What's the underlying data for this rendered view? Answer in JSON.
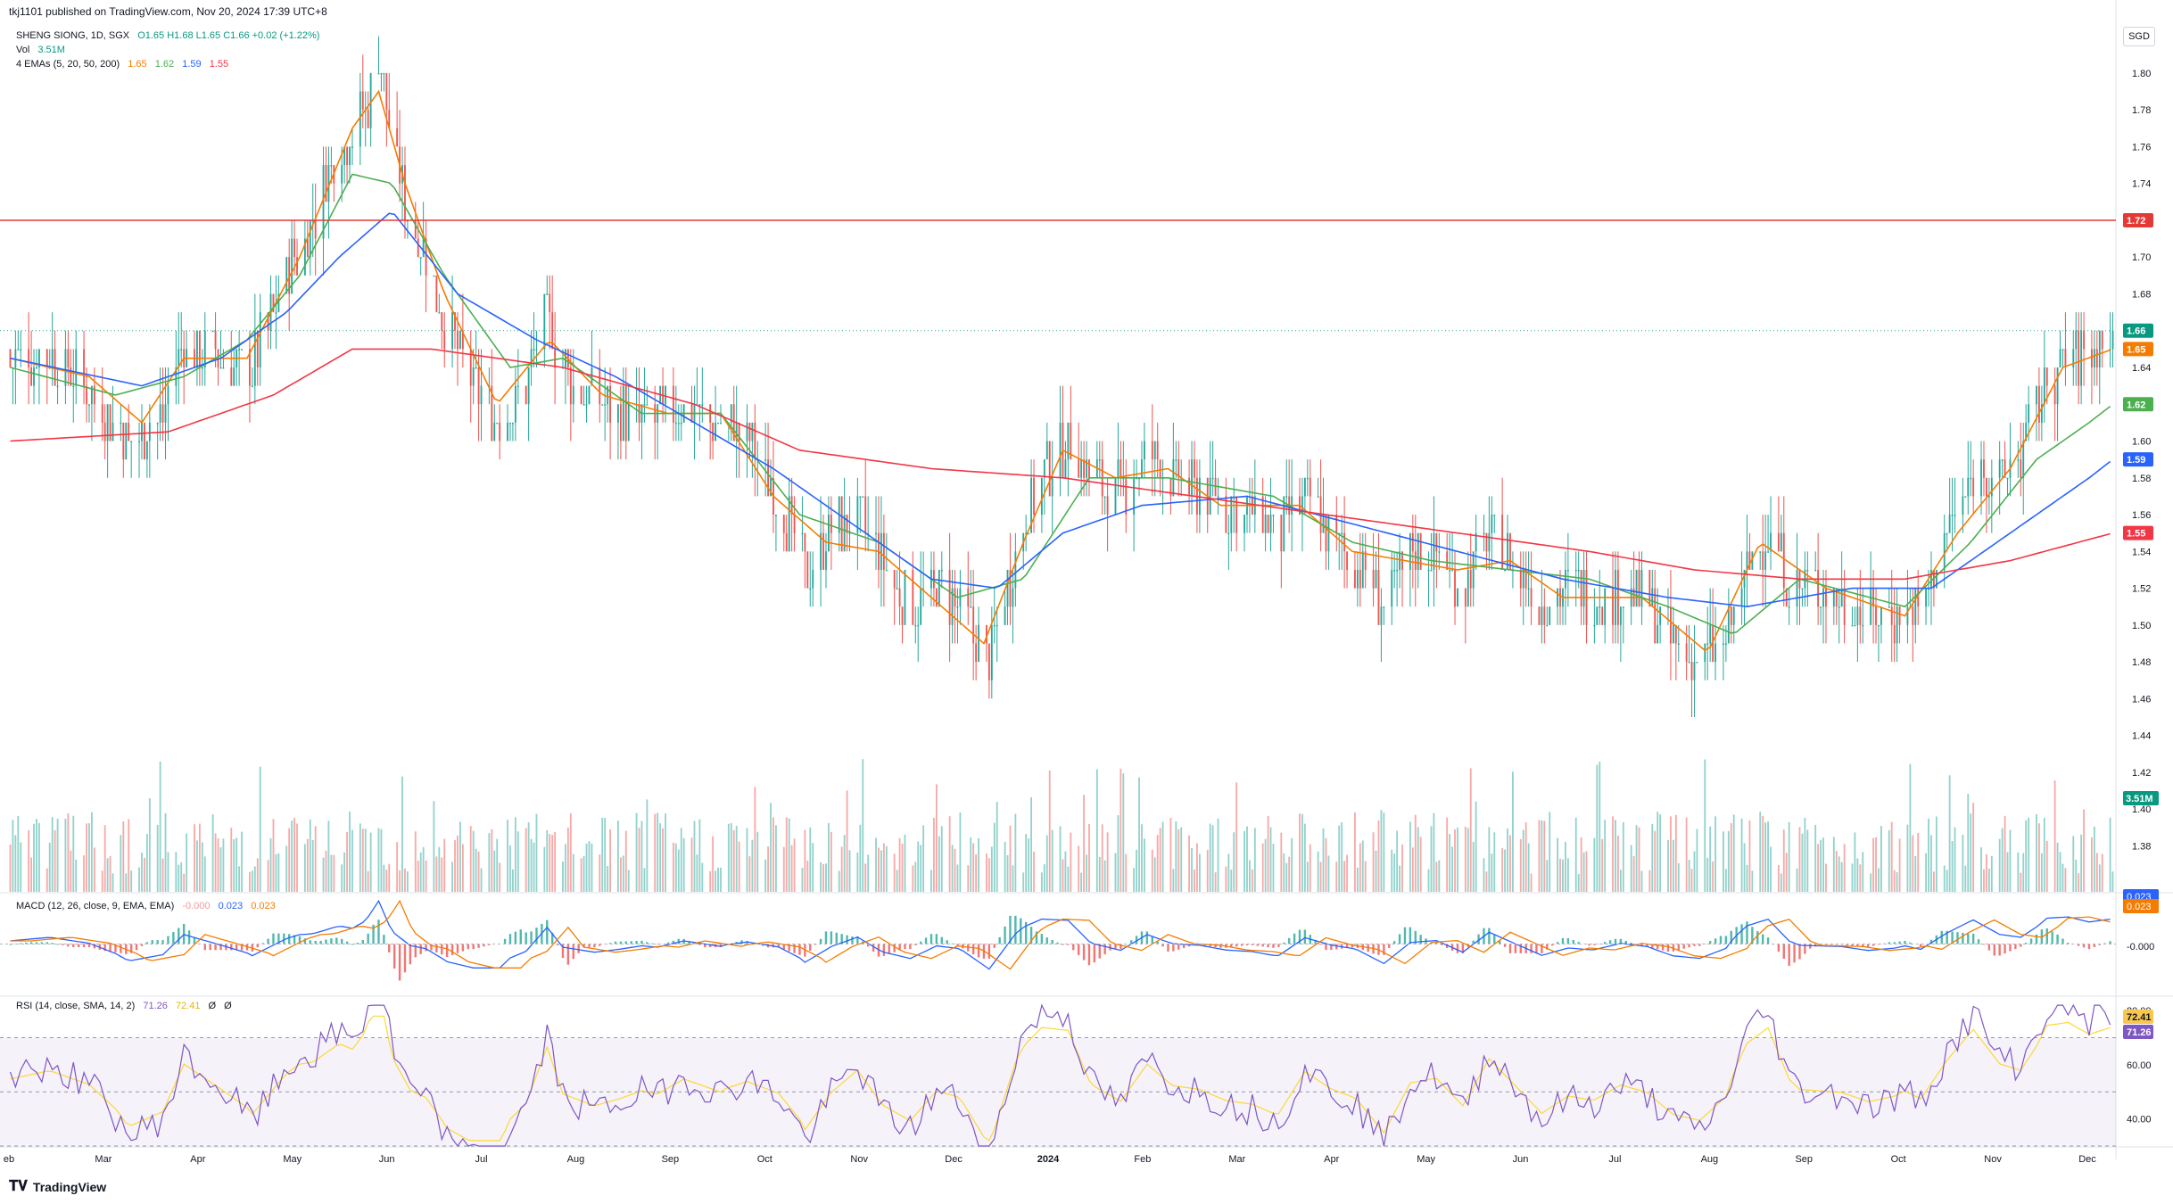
{
  "header": {
    "publisher_line": "tkj1101 published on TradingView.com, Nov 20, 2024 17:39 UTC+8"
  },
  "legend": {
    "symbol": "SHENG SIONG, 1D, SGX",
    "ohlc": "O1.65  H1.68  L1.65  C1.66  +0.02 (+1.22%)",
    "vol_label": "Vol",
    "vol_value": "3.51M",
    "ema_label": "4 EMAs (5, 20, 50, 200)",
    "ema_values": [
      "1.65",
      "1.62",
      "1.59",
      "1.55"
    ],
    "macd_label": "MACD (12, 26, close, 9, EMA, EMA)",
    "macd_values": [
      "-0.000",
      "0.023",
      "0.023"
    ],
    "rsi_label": "RSI (14, close, SMA, 14, 2)",
    "rsi_values": [
      "71.26",
      "72.41",
      "Ø",
      "Ø"
    ]
  },
  "currency": "SGD",
  "footer": {
    "brand": "TradingView"
  },
  "colors": {
    "up": "#26a69a",
    "down": "#ef5350",
    "ema5": "#f57c00",
    "ema20": "#4caf50",
    "ema50": "#2962ff",
    "ema200": "#f23645",
    "hline": "#e53935",
    "rsi": "#7e57c2",
    "rsi_ma": "#fdd835"
  },
  "chart_data": {
    "type": "candlestick",
    "price_axis_ticks": [
      "1.80",
      "1.78",
      "1.76",
      "1.74",
      "1.72",
      "1.70",
      "1.68",
      "1.66",
      "1.64",
      "1.62",
      "1.60",
      "1.58",
      "1.56",
      "1.54",
      "1.52",
      "1.50",
      "1.48",
      "1.46",
      "1.44",
      "1.42",
      "1.40",
      "1.38"
    ],
    "ylim": [
      1.355,
      1.83
    ],
    "price_labels": [
      {
        "value": 1.72,
        "text": "1.72",
        "color": "#e53935"
      },
      {
        "value": 1.66,
        "text": "1.66",
        "color": "#089981"
      },
      {
        "value": 1.65,
        "text": "1.65",
        "color": "#f57c00"
      },
      {
        "value": 1.62,
        "text": "1.62",
        "color": "#4caf50"
      },
      {
        "value": 1.59,
        "text": "1.59",
        "color": "#2962ff"
      },
      {
        "value": 1.55,
        "text": "1.55",
        "color": "#f23645"
      }
    ],
    "volume_label": "3.51M",
    "horizontal_line": 1.72,
    "last_close": 1.66,
    "time_axis": [
      "eb",
      "Mar",
      "Apr",
      "May",
      "Jun",
      "Jul",
      "Aug",
      "Sep",
      "Oct",
      "Nov",
      "Dec",
      "2024",
      "Feb",
      "Mar",
      "Apr",
      "May",
      "Jun",
      "Jul",
      "Aug",
      "Sep",
      "Oct",
      "Nov",
      "Dec"
    ],
    "series_path": [
      [
        0,
        1.645
      ],
      [
        15,
        1.645
      ],
      [
        30,
        1.63
      ],
      [
        45,
        1.6
      ],
      [
        58,
        1.615
      ],
      [
        66,
        1.65
      ],
      [
        80,
        1.645
      ],
      [
        92,
        1.64
      ],
      [
        105,
        1.69
      ],
      [
        115,
        1.72
      ],
      [
        125,
        1.76
      ],
      [
        135,
        1.78
      ],
      [
        140,
        1.81
      ],
      [
        145,
        1.76
      ],
      [
        152,
        1.72
      ],
      [
        158,
        1.7
      ],
      [
        166,
        1.66
      ],
      [
        176,
        1.63
      ],
      [
        186,
        1.61
      ],
      [
        196,
        1.63
      ],
      [
        204,
        1.67
      ],
      [
        210,
        1.64
      ],
      [
        222,
        1.62
      ],
      [
        232,
        1.615
      ],
      [
        246,
        1.61
      ],
      [
        256,
        1.62
      ],
      [
        264,
        1.615
      ],
      [
        272,
        1.61
      ],
      [
        280,
        1.6
      ],
      [
        292,
        1.57
      ],
      [
        302,
        1.53
      ],
      [
        312,
        1.55
      ],
      [
        322,
        1.56
      ],
      [
        332,
        1.53
      ],
      [
        342,
        1.51
      ],
      [
        352,
        1.52
      ],
      [
        362,
        1.505
      ],
      [
        372,
        1.48
      ],
      [
        382,
        1.54
      ],
      [
        392,
        1.58
      ],
      [
        402,
        1.6
      ],
      [
        412,
        1.58
      ],
      [
        422,
        1.57
      ],
      [
        432,
        1.595
      ],
      [
        442,
        1.58
      ],
      [
        452,
        1.575
      ],
      [
        462,
        1.565
      ],
      [
        472,
        1.56
      ],
      [
        482,
        1.55
      ],
      [
        492,
        1.57
      ],
      [
        502,
        1.55
      ],
      [
        512,
        1.535
      ],
      [
        522,
        1.51
      ],
      [
        532,
        1.54
      ],
      [
        542,
        1.54
      ],
      [
        552,
        1.52
      ],
      [
        562,
        1.55
      ],
      [
        572,
        1.53
      ],
      [
        582,
        1.51
      ],
      [
        592,
        1.52
      ],
      [
        602,
        1.515
      ],
      [
        612,
        1.52
      ],
      [
        622,
        1.51
      ],
      [
        632,
        1.49
      ],
      [
        642,
        1.48
      ],
      [
        652,
        1.49
      ],
      [
        660,
        1.53
      ],
      [
        668,
        1.55
      ],
      [
        676,
        1.525
      ],
      [
        686,
        1.52
      ],
      [
        696,
        1.515
      ],
      [
        706,
        1.505
      ],
      [
        716,
        1.505
      ],
      [
        726,
        1.51
      ],
      [
        736,
        1.55
      ],
      [
        746,
        1.585
      ],
      [
        756,
        1.58
      ],
      [
        764,
        1.59
      ],
      [
        774,
        1.635
      ],
      [
        782,
        1.645
      ],
      [
        790,
        1.645
      ],
      [
        799,
        1.66
      ]
    ],
    "ema_paths": {
      "ema5": [
        [
          0,
          1.645
        ],
        [
          30,
          1.635
        ],
        [
          50,
          1.61
        ],
        [
          66,
          1.645
        ],
        [
          90,
          1.645
        ],
        [
          110,
          1.7
        ],
        [
          130,
          1.77
        ],
        [
          140,
          1.79
        ],
        [
          150,
          1.74
        ],
        [
          165,
          1.68
        ],
        [
          185,
          1.62
        ],
        [
          205,
          1.655
        ],
        [
          225,
          1.625
        ],
        [
          250,
          1.615
        ],
        [
          270,
          1.615
        ],
        [
          290,
          1.57
        ],
        [
          310,
          1.545
        ],
        [
          330,
          1.54
        ],
        [
          350,
          1.515
        ],
        [
          370,
          1.49
        ],
        [
          385,
          1.545
        ],
        [
          400,
          1.595
        ],
        [
          420,
          1.58
        ],
        [
          440,
          1.585
        ],
        [
          460,
          1.565
        ],
        [
          490,
          1.565
        ],
        [
          510,
          1.54
        ],
        [
          530,
          1.535
        ],
        [
          550,
          1.53
        ],
        [
          570,
          1.535
        ],
        [
          590,
          1.515
        ],
        [
          620,
          1.515
        ],
        [
          645,
          1.485
        ],
        [
          665,
          1.545
        ],
        [
          690,
          1.52
        ],
        [
          720,
          1.505
        ],
        [
          740,
          1.55
        ],
        [
          760,
          1.585
        ],
        [
          780,
          1.64
        ],
        [
          799,
          1.65
        ]
      ],
      "ema20": [
        [
          0,
          1.64
        ],
        [
          40,
          1.625
        ],
        [
          66,
          1.635
        ],
        [
          90,
          1.655
        ],
        [
          110,
          1.69
        ],
        [
          130,
          1.745
        ],
        [
          145,
          1.74
        ],
        [
          165,
          1.69
        ],
        [
          190,
          1.64
        ],
        [
          210,
          1.645
        ],
        [
          240,
          1.615
        ],
        [
          270,
          1.615
        ],
        [
          300,
          1.56
        ],
        [
          330,
          1.545
        ],
        [
          360,
          1.515
        ],
        [
          385,
          1.525
        ],
        [
          410,
          1.58
        ],
        [
          440,
          1.58
        ],
        [
          480,
          1.57
        ],
        [
          510,
          1.545
        ],
        [
          540,
          1.535
        ],
        [
          570,
          1.53
        ],
        [
          600,
          1.525
        ],
        [
          630,
          1.51
        ],
        [
          655,
          1.495
        ],
        [
          680,
          1.525
        ],
        [
          720,
          1.51
        ],
        [
          745,
          1.545
        ],
        [
          770,
          1.59
        ],
        [
          790,
          1.61
        ],
        [
          799,
          1.62
        ]
      ],
      "ema50": [
        [
          0,
          1.645
        ],
        [
          50,
          1.63
        ],
        [
          80,
          1.645
        ],
        [
          105,
          1.67
        ],
        [
          125,
          1.7
        ],
        [
          145,
          1.725
        ],
        [
          170,
          1.68
        ],
        [
          200,
          1.655
        ],
        [
          230,
          1.635
        ],
        [
          260,
          1.61
        ],
        [
          290,
          1.585
        ],
        [
          320,
          1.555
        ],
        [
          350,
          1.525
        ],
        [
          375,
          1.52
        ],
        [
          400,
          1.55
        ],
        [
          430,
          1.565
        ],
        [
          470,
          1.57
        ],
        [
          510,
          1.555
        ],
        [
          550,
          1.54
        ],
        [
          590,
          1.525
        ],
        [
          630,
          1.515
        ],
        [
          660,
          1.51
        ],
        [
          700,
          1.52
        ],
        [
          730,
          1.52
        ],
        [
          760,
          1.55
        ],
        [
          790,
          1.58
        ],
        [
          799,
          1.59
        ]
      ],
      "ema200": [
        [
          0,
          1.6
        ],
        [
          60,
          1.605
        ],
        [
          100,
          1.625
        ],
        [
          130,
          1.65
        ],
        [
          160,
          1.65
        ],
        [
          210,
          1.64
        ],
        [
          260,
          1.62
        ],
        [
          300,
          1.595
        ],
        [
          350,
          1.585
        ],
        [
          400,
          1.58
        ],
        [
          450,
          1.57
        ],
        [
          500,
          1.56
        ],
        [
          550,
          1.55
        ],
        [
          600,
          1.54
        ],
        [
          640,
          1.53
        ],
        [
          680,
          1.525
        ],
        [
          720,
          1.525
        ],
        [
          760,
          1.535
        ],
        [
          799,
          1.55
        ]
      ]
    },
    "macd": {
      "ylim": [
        -0.04,
        0.04
      ],
      "labels": [
        "0.023",
        "0.023",
        "-0.000"
      ]
    },
    "rsi": {
      "ylim": [
        30,
        85
      ],
      "ticks": [
        "80.00",
        "60.00",
        "40.00"
      ],
      "upper": 70,
      "lower": 30,
      "labels": [
        "72.41",
        "71.26"
      ]
    }
  }
}
